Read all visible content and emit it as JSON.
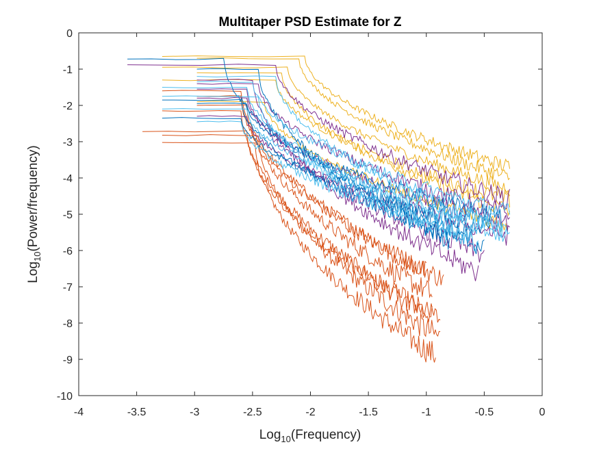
{
  "chart_data": {
    "type": "line",
    "title": "Multitaper PSD Estimate for Z",
    "xlabel": {
      "base": "Log",
      "sub": "10",
      "rest": "(Frequency)"
    },
    "ylabel": {
      "base": "Log",
      "sub": "10",
      "rest": "(Power/frequency)"
    },
    "xlim": [
      -4,
      0
    ],
    "ylim": [
      -10,
      0
    ],
    "xticks": [
      -4,
      -3.5,
      -3,
      -2.5,
      -2,
      -1.5,
      -1,
      -0.5,
      0
    ],
    "xtick_labels": [
      "-4",
      "-3.5",
      "-3",
      "-2.5",
      "-2",
      "-1.5",
      "-1",
      "-0.5",
      "0"
    ],
    "yticks": [
      0,
      -1,
      -2,
      -3,
      -4,
      -5,
      -6,
      -7,
      -8,
      -9,
      -10
    ],
    "ytick_labels": [
      "0",
      "-1",
      "-2",
      "-3",
      "-4",
      "-5",
      "-6",
      "-7",
      "-8",
      "-9",
      "-10"
    ],
    "grid": false,
    "legend": "none",
    "colors": {
      "orange": "#D95319",
      "yellow": "#EDB120",
      "purple": "#7E2F8E",
      "blue": "#0072BD",
      "lightblue": "#4DBEEE"
    },
    "series": [
      {
        "color": "orange",
        "x0": -3.45,
        "y0": -2.72,
        "knee": -2.55,
        "end": -0.88,
        "tail": -7.9,
        "noise": 0.45
      },
      {
        "color": "orange",
        "x0": -3.28,
        "y0": -2.82,
        "knee": -2.45,
        "end": -0.88,
        "tail": -8.4,
        "noise": 0.5
      },
      {
        "color": "orange",
        "x0": -3.28,
        "y0": -3.02,
        "knee": -2.48,
        "end": -0.92,
        "tail": -8.9,
        "noise": 0.5
      },
      {
        "color": "orange",
        "x0": -3.28,
        "y0": -2.15,
        "knee": -2.6,
        "end": -0.95,
        "tail": -7.8,
        "noise": 0.45
      },
      {
        "color": "orange",
        "x0": -3.28,
        "y0": -1.6,
        "knee": -2.6,
        "end": -0.85,
        "tail": -6.8,
        "noise": 0.4
      },
      {
        "color": "orange",
        "x0": -2.98,
        "y0": -2.0,
        "knee": -2.55,
        "end": -0.95,
        "tail": -7.2,
        "noise": 0.45
      },
      {
        "color": "orange",
        "x0": -2.98,
        "y0": -1.75,
        "knee": -2.6,
        "end": -1.0,
        "tail": -6.6,
        "noise": 0.4
      },
      {
        "color": "yellow",
        "x0": -3.28,
        "y0": -0.65,
        "knee": -2.05,
        "end": -0.28,
        "tail": -3.7,
        "noise": 0.3
      },
      {
        "color": "yellow",
        "x0": -2.98,
        "y0": -0.7,
        "knee": -2.1,
        "end": -0.28,
        "tail": -4.0,
        "noise": 0.3
      },
      {
        "color": "yellow",
        "x0": -3.28,
        "y0": -0.95,
        "knee": -2.2,
        "end": -0.28,
        "tail": -4.3,
        "noise": 0.3
      },
      {
        "color": "yellow",
        "x0": -3.28,
        "y0": -1.3,
        "knee": -2.3,
        "end": -0.28,
        "tail": -4.6,
        "noise": 0.35
      },
      {
        "color": "yellow",
        "x0": -2.98,
        "y0": -1.1,
        "knee": -2.25,
        "end": -0.28,
        "tail": -4.9,
        "noise": 0.35
      },
      {
        "color": "yellow",
        "x0": -2.98,
        "y0": -1.9,
        "knee": -2.4,
        "end": -0.3,
        "tail": -5.3,
        "noise": 0.35
      },
      {
        "color": "purple",
        "x0": -3.58,
        "y0": -0.88,
        "knee": -2.3,
        "end": -0.28,
        "tail": -4.6,
        "noise": 0.4
      },
      {
        "color": "purple",
        "x0": -2.98,
        "y0": -1.4,
        "knee": -2.45,
        "end": -0.28,
        "tail": -5.0,
        "noise": 0.4
      },
      {
        "color": "purple",
        "x0": -2.98,
        "y0": -1.8,
        "knee": -2.55,
        "end": -0.3,
        "tail": -5.3,
        "noise": 0.4
      },
      {
        "color": "purple",
        "x0": -2.98,
        "y0": -2.3,
        "knee": -2.55,
        "end": -0.28,
        "tail": -5.6,
        "noise": 0.4
      },
      {
        "color": "purple",
        "x0": -2.98,
        "y0": -1.55,
        "knee": -2.55,
        "end": -0.5,
        "tail": -6.1,
        "noise": 0.45
      },
      {
        "color": "purple",
        "x0": -2.98,
        "y0": -1.3,
        "knee": -2.5,
        "end": -0.55,
        "tail": -6.6,
        "noise": 0.45
      },
      {
        "color": "blue",
        "x0": -3.58,
        "y0": -0.72,
        "knee": -2.75,
        "end": -0.6,
        "tail": -5.6,
        "noise": 0.4
      },
      {
        "color": "blue",
        "x0": -3.28,
        "y0": -1.85,
        "knee": -2.6,
        "end": -0.5,
        "tail": -5.9,
        "noise": 0.4
      },
      {
        "color": "blue",
        "x0": -3.28,
        "y0": -2.35,
        "knee": -2.6,
        "end": -0.45,
        "tail": -5.4,
        "noise": 0.4
      },
      {
        "color": "blue",
        "x0": -2.98,
        "y0": -1.95,
        "knee": -2.55,
        "end": -0.35,
        "tail": -5.1,
        "noise": 0.4
      },
      {
        "color": "blue",
        "x0": -2.98,
        "y0": -1.0,
        "knee": -2.45,
        "end": -0.8,
        "tail": -5.7,
        "noise": 0.4
      },
      {
        "color": "lightblue",
        "x0": -3.28,
        "y0": -1.5,
        "knee": -2.55,
        "end": -0.28,
        "tail": -5.6,
        "noise": 0.4
      },
      {
        "color": "lightblue",
        "x0": -2.98,
        "y0": -1.35,
        "knee": -2.5,
        "end": -0.28,
        "tail": -5.0,
        "noise": 0.4
      },
      {
        "color": "lightblue",
        "x0": -3.28,
        "y0": -2.1,
        "knee": -2.55,
        "end": -0.35,
        "tail": -5.3,
        "noise": 0.4
      },
      {
        "color": "lightblue",
        "x0": -2.98,
        "y0": -2.45,
        "knee": -2.6,
        "end": -0.6,
        "tail": -5.5,
        "noise": 0.4
      },
      {
        "color": "lightblue",
        "x0": -3.28,
        "y0": -1.75,
        "knee": -2.45,
        "end": -0.55,
        "tail": -5.8,
        "noise": 0.4
      },
      {
        "color": "lightblue",
        "x0": -2.98,
        "y0": -1.2,
        "knee": -2.3,
        "end": -0.3,
        "tail": -5.45,
        "noise": 0.4
      }
    ]
  }
}
